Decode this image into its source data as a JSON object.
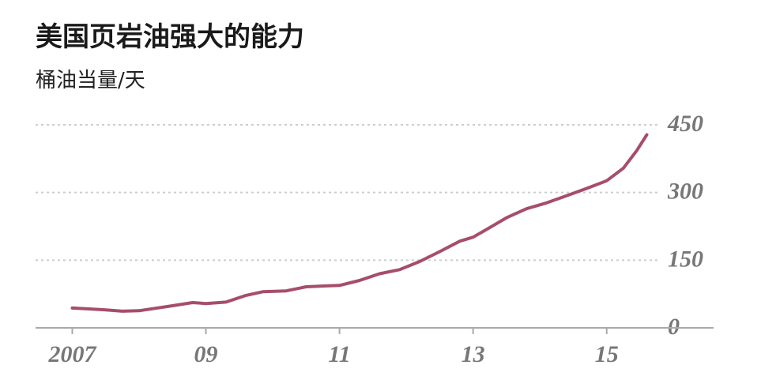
{
  "chart_data": {
    "type": "line",
    "title": "美国页岩油强大的能力",
    "subtitle": "桶油当量/天",
    "x": [
      2007.0,
      2007.5,
      2007.75,
      2008.0,
      2008.5,
      2008.8,
      2009.0,
      2009.3,
      2009.6,
      2009.85,
      2010.2,
      2010.5,
      2010.8,
      2011.0,
      2011.3,
      2011.6,
      2011.9,
      2012.2,
      2012.5,
      2012.8,
      2013.0,
      2013.2,
      2013.5,
      2013.8,
      2014.1,
      2014.4,
      2014.7,
      2015.0,
      2015.25,
      2015.45,
      2015.6
    ],
    "series": [
      {
        "color": "#a64d6c",
        "values": [
          44,
          40,
          37,
          38,
          49,
          56,
          54,
          57,
          72,
          80,
          82,
          91,
          93,
          94,
          105,
          120,
          129,
          147,
          169,
          192,
          201,
          218,
          244,
          264,
          277,
          293,
          309,
          326,
          354,
          393,
          428
        ]
      }
    ],
    "xlim": [
      2006.45,
      2016.6
    ],
    "xticks": [
      2007,
      {
        "value": 2009,
        "label": "09"
      },
      {
        "value": 2011,
        "label": "11"
      },
      {
        "value": 2013,
        "label": "13"
      },
      {
        "value": 2015,
        "label": "15"
      }
    ],
    "ylim": [
      0,
      450
    ],
    "yticks": [
      0,
      150,
      300,
      450
    ],
    "grid": true
  }
}
